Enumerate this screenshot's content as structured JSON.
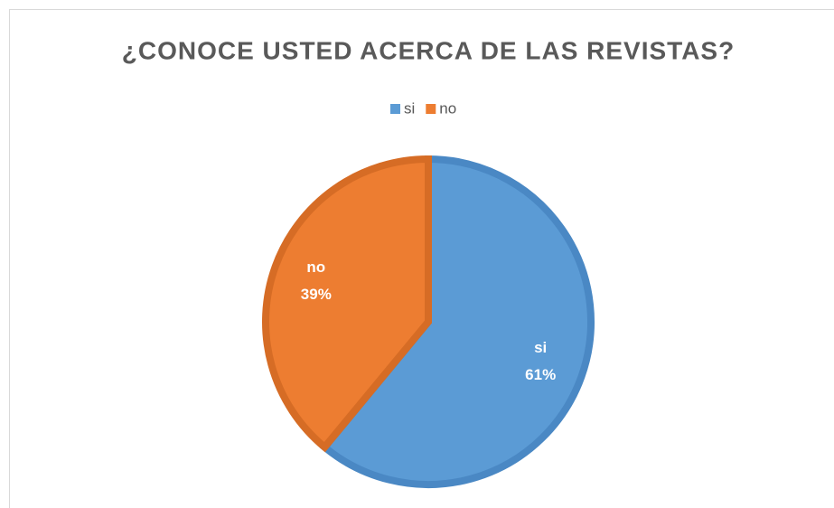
{
  "chart_data": {
    "type": "pie",
    "title": "¿CONOCE USTED ACERCA DE LAS REVISTAS?",
    "categories": [
      "si",
      "no"
    ],
    "values": [
      61,
      39
    ],
    "value_labels": [
      "61%",
      "39%"
    ],
    "colors": [
      "#5b9bd5",
      "#ed7d31"
    ],
    "border_colors": [
      "#4a88c4",
      "#d66c25"
    ],
    "legend": "top"
  }
}
